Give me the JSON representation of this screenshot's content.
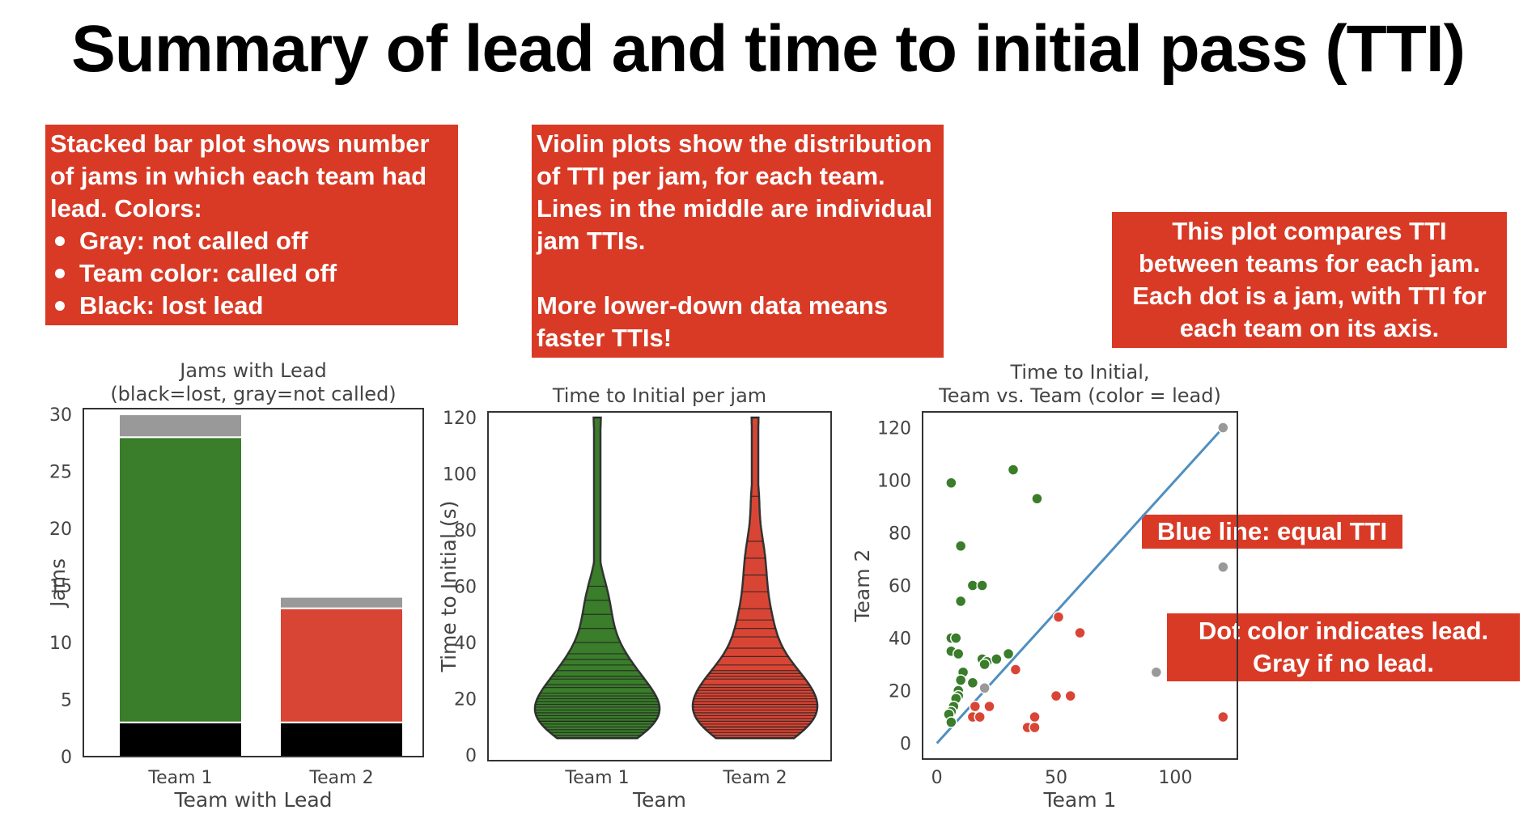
{
  "slide": {
    "title": "Summary of lead and time to initial pass (TTI)"
  },
  "callouts": {
    "bar": {
      "lines": [
        "Stacked bar plot shows number",
        "of jams in which each team had",
        "lead. Colors:"
      ],
      "bullets": [
        "Gray: not called off",
        "Team color: called off",
        "Black: lost lead"
      ]
    },
    "violin": {
      "lines": [
        "Violin plots show the distribution",
        "of TTI per jam, for each team.",
        "Lines in the middle are individual",
        "jam TTIs.",
        "",
        "More lower-down data means",
        "faster TTIs!"
      ]
    },
    "scatter": {
      "lines": [
        "This plot compares TTI",
        "between teams for each jam.",
        "Each dot is a jam, with TTI for",
        "each team on its axis."
      ]
    },
    "blue_line": {
      "lines": [
        "Blue line: equal TTI"
      ]
    },
    "dot_color": {
      "lines": [
        "Dot color indicates lead.",
        "Gray if no lead."
      ]
    }
  },
  "colors": {
    "team1": "#3a7d2a",
    "team2": "#d94535",
    "gray": "#999999",
    "black": "#000000",
    "line": "#4f8fc0",
    "callout_bg": "#d93a26"
  },
  "chart_data": [
    {
      "type": "bar",
      "title": "Jams with Lead\n(black=lost, gray=not called)",
      "xlabel": "Team with Lead",
      "ylabel": "Jams",
      "categories": [
        "Team 1",
        "Team 2"
      ],
      "ylim": [
        0,
        30.5
      ],
      "yticks": [
        0,
        5,
        10,
        15,
        20,
        25,
        30
      ],
      "stacked": true,
      "series": [
        {
          "role": "lost",
          "values": [
            3,
            3
          ]
        },
        {
          "role": "called",
          "values": [
            25,
            10
          ]
        },
        {
          "role": "not_called",
          "values": [
            2,
            1
          ]
        }
      ]
    },
    {
      "type": "violin",
      "title": "Time to Initial per jam",
      "xlabel": "Team",
      "ylabel": "Time to Initial (s)",
      "categories": [
        "Team 1",
        "Team 2"
      ],
      "ylim": [
        -2,
        122
      ],
      "yticks": [
        0,
        20,
        40,
        60,
        80,
        100,
        120
      ],
      "values": [
        [
          6,
          7,
          8,
          9,
          10,
          11,
          12,
          12,
          13,
          14,
          15,
          16,
          17,
          18,
          19,
          20,
          21,
          22,
          24,
          25,
          27,
          28,
          30,
          32,
          34,
          36,
          40,
          45,
          50,
          55,
          60,
          120
        ],
        [
          6,
          7,
          8,
          9,
          10,
          10,
          11,
          12,
          13,
          14,
          15,
          16,
          17,
          18,
          19,
          20,
          21,
          22,
          23,
          24,
          25,
          27,
          28,
          29,
          30,
          32,
          35,
          38,
          42,
          45,
          48,
          52,
          58,
          64,
          70,
          76,
          92,
          120
        ]
      ]
    },
    {
      "type": "scatter",
      "title": "Time to Initial,\nTeam vs. Team (color = lead)",
      "xlabel": "Team 1",
      "ylabel": "Team 2",
      "xlim": [
        -6,
        126
      ],
      "ylim": [
        -6,
        126
      ],
      "xticks": [
        0,
        50,
        100
      ],
      "yticks": [
        0,
        20,
        40,
        60,
        80,
        100,
        120
      ],
      "reference_line": [
        [
          0,
          0
        ],
        [
          120,
          120
        ]
      ],
      "points": {
        "team1": [
          [
            6,
            99
          ],
          [
            32,
            104
          ],
          [
            42,
            93
          ],
          [
            10,
            75
          ],
          [
            15,
            60
          ],
          [
            19,
            60
          ],
          [
            10,
            54
          ],
          [
            6,
            40
          ],
          [
            8,
            40
          ],
          [
            6,
            35
          ],
          [
            9,
            34
          ],
          [
            19,
            32
          ],
          [
            21,
            31
          ],
          [
            25,
            32
          ],
          [
            30,
            34
          ],
          [
            20,
            30
          ],
          [
            11,
            27
          ],
          [
            10,
            24
          ],
          [
            15,
            23
          ],
          [
            9,
            20
          ],
          [
            9,
            18
          ],
          [
            8,
            17
          ],
          [
            7,
            14
          ],
          [
            6,
            12
          ],
          [
            5,
            11
          ],
          [
            6,
            8
          ]
        ],
        "team2": [
          [
            51,
            48
          ],
          [
            60,
            42
          ],
          [
            33,
            28
          ],
          [
            50,
            18
          ],
          [
            56,
            18
          ],
          [
            22,
            14
          ],
          [
            16,
            14
          ],
          [
            15,
            10
          ],
          [
            18,
            10
          ],
          [
            41,
            10
          ],
          [
            38,
            6
          ],
          [
            41,
            6
          ],
          [
            120,
            10
          ]
        ],
        "gray": [
          [
            120,
            120
          ],
          [
            120,
            67
          ],
          [
            92,
            27
          ],
          [
            20,
            21
          ]
        ]
      }
    }
  ]
}
